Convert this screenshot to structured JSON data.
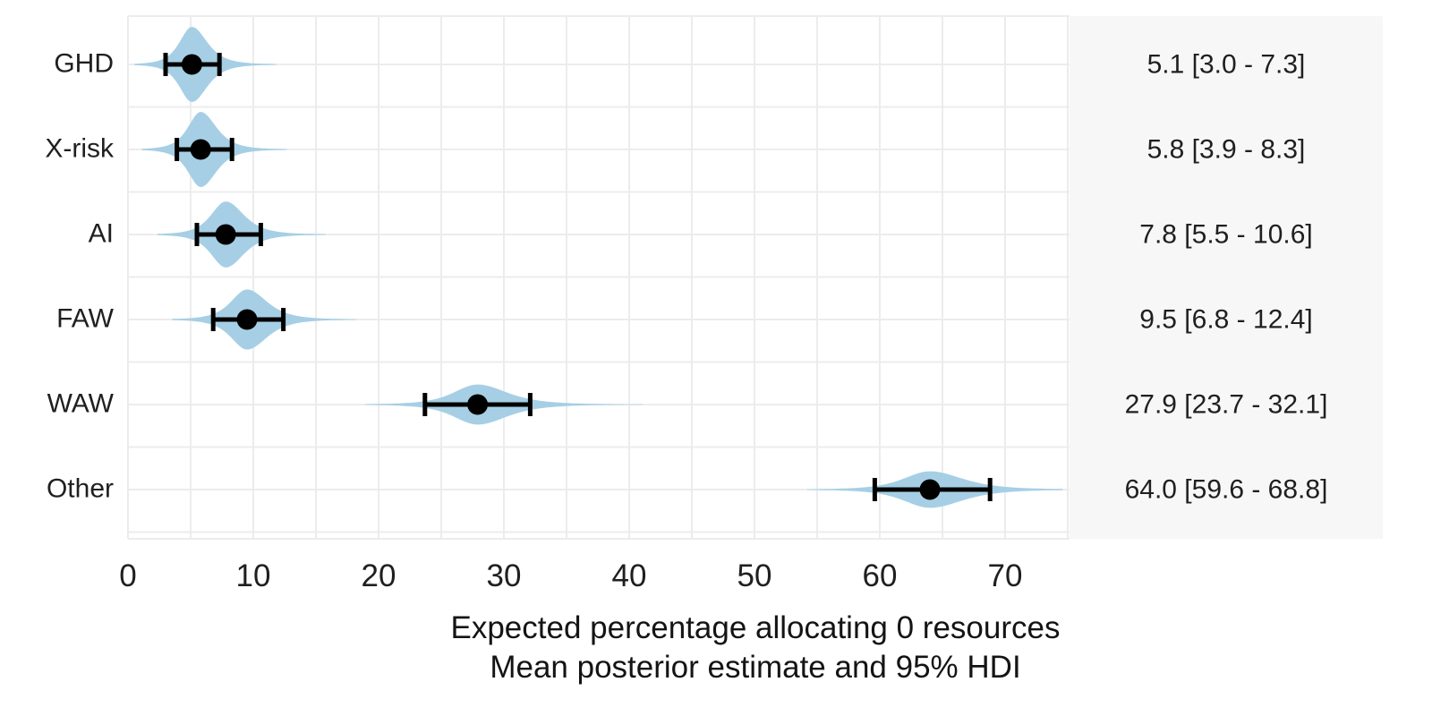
{
  "chart_data": {
    "type": "violin",
    "xlabel_lines": [
      "Expected percentage allocating 0 resources",
      "Mean posterior estimate and 95% HDI"
    ],
    "x_ticks": [
      0,
      10,
      20,
      30,
      40,
      50,
      60,
      70
    ],
    "xlim": [
      0,
      75
    ],
    "grid_step": 5,
    "legend_position": "none",
    "grid": true,
    "rows": [
      {
        "label": "GHD",
        "mean": 5.1,
        "hdi_low": 3.0,
        "hdi_high": 7.3,
        "hdi_text": "5.1 [3.0 - 7.3]"
      },
      {
        "label": "X-risk",
        "mean": 5.8,
        "hdi_low": 3.9,
        "hdi_high": 8.3,
        "hdi_text": "5.8 [3.9 - 8.3]"
      },
      {
        "label": "AI",
        "mean": 7.8,
        "hdi_low": 5.5,
        "hdi_high": 10.6,
        "hdi_text": "7.8 [5.5 - 10.6]"
      },
      {
        "label": "FAW",
        "mean": 9.5,
        "hdi_low": 6.8,
        "hdi_high": 12.4,
        "hdi_text": "9.5 [6.8 - 12.4]"
      },
      {
        "label": "WAW",
        "mean": 27.9,
        "hdi_low": 23.7,
        "hdi_high": 32.1,
        "hdi_text": "27.9 [23.7 - 32.1]"
      },
      {
        "label": "Other",
        "mean": 64.0,
        "hdi_low": 59.6,
        "hdi_high": 68.8,
        "hdi_text": "64.0 [59.6 - 68.8]"
      }
    ],
    "colors": {
      "violin": "#a6cfe5",
      "point": "#000000",
      "interval": "#000000",
      "grid": "#ececec",
      "panel_bg": "#f7f7f7",
      "text": "#1f1f1f"
    }
  }
}
